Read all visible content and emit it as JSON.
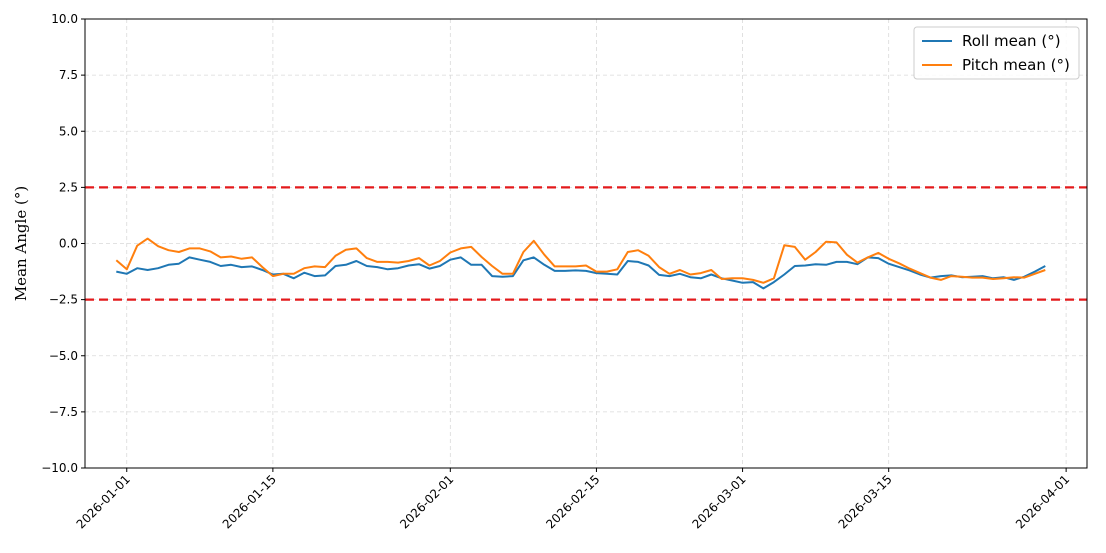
{
  "chart_data": {
    "type": "line",
    "title": "",
    "xlabel": "",
    "ylabel": "Mean Angle (°)",
    "ylim": [
      -10,
      10
    ],
    "xlim": [
      "2025-12-28",
      "2026-04-03"
    ],
    "grid": true,
    "legend_position": "top-right",
    "x_ticks": [
      "2026-01-01",
      "2026-01-15",
      "2026-02-01",
      "2026-02-15",
      "2026-03-01",
      "2026-03-15",
      "2026-04-01"
    ],
    "y_ticks": [
      10.0,
      7.5,
      5.0,
      2.5,
      0.0,
      -2.5,
      -5.0,
      -7.5,
      -10.0
    ],
    "y_tick_labels": [
      "10.0",
      "7.5",
      "5.0",
      "2.5",
      "0.0",
      "−2.5",
      "−5.0",
      "−7.5",
      "−10.0"
    ],
    "reference_lines": [
      {
        "y": 2.5,
        "color": "#e31a1c",
        "style": "dashed"
      },
      {
        "y": -2.5,
        "color": "#e31a1c",
        "style": "dashed"
      }
    ],
    "x": [
      "2025-12-31",
      "2026-01-01",
      "2026-01-02",
      "2026-01-03",
      "2026-01-04",
      "2026-01-05",
      "2026-01-06",
      "2026-01-07",
      "2026-01-08",
      "2026-01-09",
      "2026-01-10",
      "2026-01-11",
      "2026-01-12",
      "2026-01-13",
      "2026-01-14",
      "2026-01-15",
      "2026-01-16",
      "2026-01-17",
      "2026-01-18",
      "2026-01-19",
      "2026-01-20",
      "2026-01-21",
      "2026-01-22",
      "2026-01-23",
      "2026-01-24",
      "2026-01-25",
      "2026-01-26",
      "2026-01-27",
      "2026-01-28",
      "2026-01-29",
      "2026-01-30",
      "2026-01-31",
      "2026-02-01",
      "2026-02-02",
      "2026-02-03",
      "2026-02-04",
      "2026-02-05",
      "2026-02-06",
      "2026-02-07",
      "2026-02-08",
      "2026-02-09",
      "2026-02-10",
      "2026-02-11",
      "2026-02-12",
      "2026-02-13",
      "2026-02-14",
      "2026-02-15",
      "2026-02-16",
      "2026-02-17",
      "2026-02-18",
      "2026-02-19",
      "2026-02-20",
      "2026-02-21",
      "2026-02-22",
      "2026-02-23",
      "2026-02-24",
      "2026-02-25",
      "2026-02-26",
      "2026-02-27",
      "2026-02-28",
      "2026-03-01",
      "2026-03-02",
      "2026-03-03",
      "2026-03-04",
      "2026-03-05",
      "2026-03-06",
      "2026-03-07",
      "2026-03-08",
      "2026-03-09",
      "2026-03-10",
      "2026-03-11",
      "2026-03-12",
      "2026-03-13",
      "2026-03-14",
      "2026-03-15",
      "2026-03-16",
      "2026-03-17",
      "2026-03-18",
      "2026-03-19",
      "2026-03-20",
      "2026-03-21",
      "2026-03-22",
      "2026-03-23",
      "2026-03-24",
      "2026-03-25",
      "2026-03-26",
      "2026-03-27",
      "2026-03-28",
      "2026-03-29",
      "2026-03-30"
    ],
    "series": [
      {
        "name": "Roll mean (°)",
        "color": "#1f77b4",
        "values": [
          -1.25,
          -1.35,
          -1.1,
          -1.18,
          -1.1,
          -0.95,
          -0.9,
          -0.62,
          -0.72,
          -0.82,
          -1.0,
          -0.95,
          -1.05,
          -1.02,
          -1.18,
          -1.38,
          -1.35,
          -1.55,
          -1.3,
          -1.45,
          -1.42,
          -1.0,
          -0.95,
          -0.78,
          -1.0,
          -1.05,
          -1.15,
          -1.1,
          -0.98,
          -0.92,
          -1.12,
          -1.0,
          -0.72,
          -0.62,
          -0.95,
          -0.95,
          -1.45,
          -1.48,
          -1.45,
          -0.75,
          -0.62,
          -0.95,
          -1.22,
          -1.22,
          -1.2,
          -1.22,
          -1.32,
          -1.35,
          -1.38,
          -0.78,
          -0.82,
          -0.98,
          -1.4,
          -1.45,
          -1.35,
          -1.5,
          -1.55,
          -1.38,
          -1.55,
          -1.65,
          -1.75,
          -1.72,
          -2.0,
          -1.72,
          -1.38,
          -1.0,
          -0.98,
          -0.92,
          -0.95,
          -0.82,
          -0.82,
          -0.92,
          -0.62,
          -0.65,
          -0.9,
          -1.05,
          -1.2,
          -1.38,
          -1.52,
          -1.45,
          -1.42,
          -1.5,
          -1.48,
          -1.45,
          -1.55,
          -1.5,
          -1.62,
          -1.48,
          -1.25,
          -1.0
        ]
      },
      {
        "name": "Pitch mean (°)",
        "color": "#ff7f0e",
        "values": [
          -0.75,
          -1.15,
          -0.1,
          0.22,
          -0.12,
          -0.3,
          -0.38,
          -0.22,
          -0.22,
          -0.35,
          -0.62,
          -0.58,
          -0.68,
          -0.62,
          -1.05,
          -1.45,
          -1.35,
          -1.35,
          -1.1,
          -1.02,
          -1.05,
          -0.55,
          -0.28,
          -0.22,
          -0.65,
          -0.82,
          -0.82,
          -0.85,
          -0.78,
          -0.65,
          -0.98,
          -0.78,
          -0.4,
          -0.22,
          -0.15,
          -0.6,
          -1.0,
          -1.35,
          -1.35,
          -0.38,
          0.12,
          -0.5,
          -1.02,
          -1.02,
          -1.02,
          -0.98,
          -1.25,
          -1.25,
          -1.15,
          -0.38,
          -0.3,
          -0.55,
          -1.05,
          -1.35,
          -1.18,
          -1.38,
          -1.32,
          -1.18,
          -1.58,
          -1.55,
          -1.55,
          -1.62,
          -1.75,
          -1.55,
          -0.08,
          -0.15,
          -0.72,
          -0.38,
          0.08,
          0.05,
          -0.5,
          -0.85,
          -0.62,
          -0.42,
          -0.68,
          -0.88,
          -1.12,
          -1.32,
          -1.52,
          -1.62,
          -1.45,
          -1.48,
          -1.52,
          -1.52,
          -1.58,
          -1.55,
          -1.5,
          -1.52,
          -1.35,
          -1.18
        ]
      }
    ]
  }
}
